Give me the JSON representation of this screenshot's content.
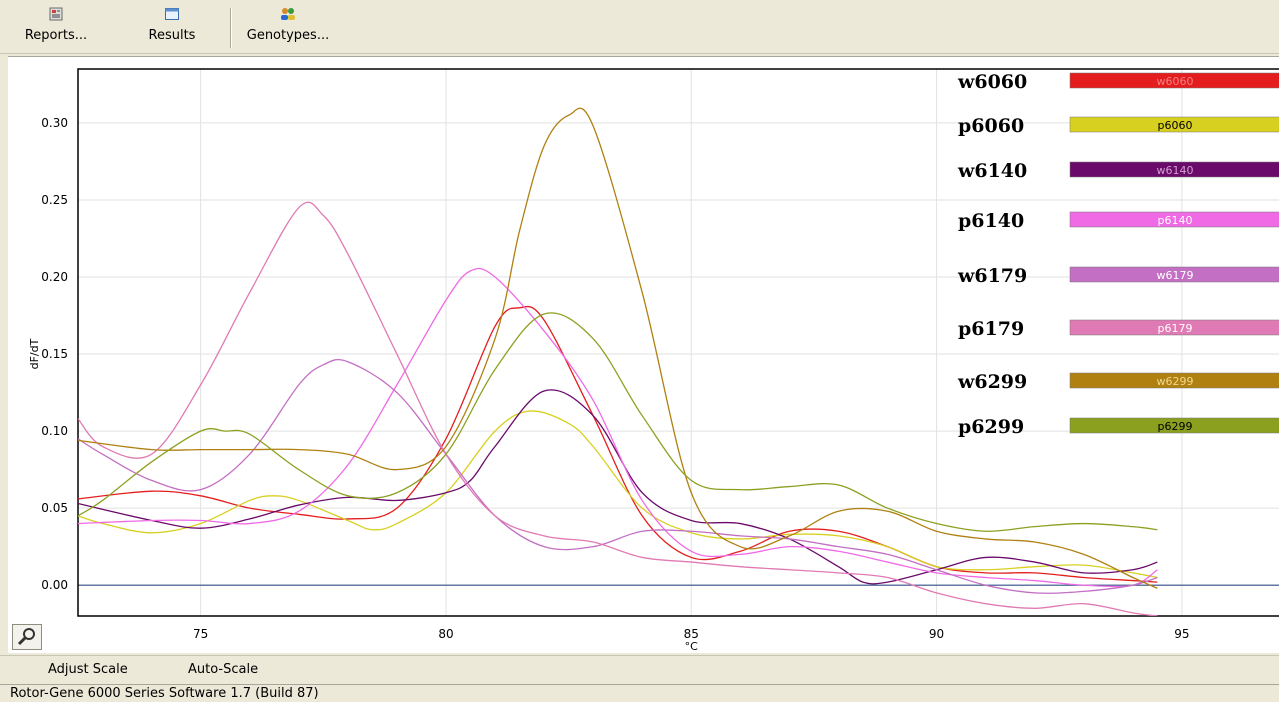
{
  "toolbar": {
    "reports_label": "Reports...",
    "results_label": "Results",
    "genotypes_label": "Genotypes..."
  },
  "bottom": {
    "adjust_scale": "Adjust Scale",
    "auto_scale": "Auto-Scale"
  },
  "status": {
    "text": "Rotor-Gene 6000 Series Software 1.7 (Build 87)"
  },
  "chart_data": {
    "type": "line",
    "title": "",
    "xlabel": "°C",
    "ylabel": "dF/dT",
    "xlim": [
      72.5,
      97
    ],
    "ylim": [
      -0.02,
      0.335
    ],
    "xticks": [
      75,
      80,
      85,
      90,
      95
    ],
    "yticks": [
      0.0,
      0.05,
      0.1,
      0.15,
      0.2,
      0.25,
      0.3
    ],
    "ytick_labels": [
      "0.00",
      "0.05",
      "0.10",
      "0.15",
      "0.20",
      "0.25",
      "0.30"
    ],
    "grid": true,
    "legend_position": "top-right",
    "series": [
      {
        "name": "w6060",
        "color": "#e41e1e",
        "legend_text_color": "#f08080",
        "points": [
          [
            72.5,
            0.056
          ],
          [
            74,
            0.061
          ],
          [
            75,
            0.058
          ],
          [
            76,
            0.05
          ],
          [
            77,
            0.046
          ],
          [
            78,
            0.043
          ],
          [
            79,
            0.05
          ],
          [
            80,
            0.095
          ],
          [
            81,
            0.168
          ],
          [
            81.5,
            0.18
          ],
          [
            82,
            0.172
          ],
          [
            83,
            0.11
          ],
          [
            84,
            0.045
          ],
          [
            85,
            0.018
          ],
          [
            86,
            0.022
          ],
          [
            87,
            0.035
          ],
          [
            88,
            0.035
          ],
          [
            89,
            0.025
          ],
          [
            90,
            0.012
          ],
          [
            91,
            0.008
          ],
          [
            92,
            0.008
          ],
          [
            93,
            0.005
          ],
          [
            94,
            0.003
          ],
          [
            94.5,
            0.002
          ]
        ]
      },
      {
        "name": "p6060",
        "color": "#d8d020",
        "legend_text_color": "#000000",
        "points": [
          [
            72.5,
            0.045
          ],
          [
            73,
            0.04
          ],
          [
            74,
            0.034
          ],
          [
            75,
            0.04
          ],
          [
            76,
            0.055
          ],
          [
            76.5,
            0.058
          ],
          [
            77,
            0.055
          ],
          [
            78,
            0.042
          ],
          [
            78.5,
            0.036
          ],
          [
            79,
            0.04
          ],
          [
            80,
            0.06
          ],
          [
            81,
            0.1
          ],
          [
            81.7,
            0.113
          ],
          [
            82.5,
            0.105
          ],
          [
            83,
            0.09
          ],
          [
            84,
            0.05
          ],
          [
            85,
            0.034
          ],
          [
            86,
            0.03
          ],
          [
            87,
            0.033
          ],
          [
            88,
            0.032
          ],
          [
            89,
            0.025
          ],
          [
            90,
            0.012
          ],
          [
            91,
            0.01
          ],
          [
            92,
            0.012
          ],
          [
            93,
            0.013
          ],
          [
            94,
            0.008
          ],
          [
            94.5,
            0.005
          ]
        ]
      },
      {
        "name": "w6140",
        "color": "#6a0a6a",
        "legend_text_color": "#d0a0d0",
        "points": [
          [
            72.5,
            0.053
          ],
          [
            74,
            0.042
          ],
          [
            75,
            0.037
          ],
          [
            76,
            0.043
          ],
          [
            77,
            0.052
          ],
          [
            78,
            0.057
          ],
          [
            79,
            0.055
          ],
          [
            80,
            0.06
          ],
          [
            80.5,
            0.068
          ],
          [
            81,
            0.09
          ],
          [
            82,
            0.126
          ],
          [
            83,
            0.11
          ],
          [
            84,
            0.06
          ],
          [
            85,
            0.042
          ],
          [
            86,
            0.04
          ],
          [
            87,
            0.03
          ],
          [
            88,
            0.012
          ],
          [
            88.5,
            0.002
          ],
          [
            89,
            0.002
          ],
          [
            90,
            0.01
          ],
          [
            91,
            0.018
          ],
          [
            92,
            0.015
          ],
          [
            93,
            0.008
          ],
          [
            94,
            0.01
          ],
          [
            94.5,
            0.015
          ]
        ]
      },
      {
        "name": "p6140",
        "color": "#f06ae6",
        "legend_text_color": "#ffffff",
        "points": [
          [
            72.5,
            0.04
          ],
          [
            74,
            0.042
          ],
          [
            75,
            0.042
          ],
          [
            76,
            0.04
          ],
          [
            77,
            0.048
          ],
          [
            78,
            0.078
          ],
          [
            79,
            0.13
          ],
          [
            80,
            0.185
          ],
          [
            80.5,
            0.204
          ],
          [
            81,
            0.2
          ],
          [
            82,
            0.165
          ],
          [
            83,
            0.12
          ],
          [
            84,
            0.055
          ],
          [
            85,
            0.022
          ],
          [
            86,
            0.02
          ],
          [
            87,
            0.025
          ],
          [
            88,
            0.022
          ],
          [
            89,
            0.015
          ],
          [
            90,
            0.008
          ],
          [
            91,
            0.005
          ],
          [
            92,
            0.003
          ],
          [
            93,
            0.0
          ],
          [
            94,
            0.0
          ],
          [
            94.5,
            0.01
          ]
        ]
      },
      {
        "name": "w6179",
        "color": "#c36fc3",
        "legend_text_color": "#ffffff",
        "points": [
          [
            72.5,
            0.095
          ],
          [
            73,
            0.085
          ],
          [
            74,
            0.068
          ],
          [
            75,
            0.062
          ],
          [
            76,
            0.085
          ],
          [
            77,
            0.13
          ],
          [
            77.5,
            0.143
          ],
          [
            78,
            0.145
          ],
          [
            79,
            0.125
          ],
          [
            80,
            0.085
          ],
          [
            81,
            0.045
          ],
          [
            82,
            0.025
          ],
          [
            83,
            0.025
          ],
          [
            84,
            0.035
          ],
          [
            85,
            0.035
          ],
          [
            86,
            0.032
          ],
          [
            87,
            0.03
          ],
          [
            88,
            0.025
          ],
          [
            89,
            0.02
          ],
          [
            90,
            0.01
          ],
          [
            91,
            0.0
          ],
          [
            92,
            -0.005
          ],
          [
            93,
            -0.004
          ],
          [
            94,
            0.0
          ],
          [
            94.5,
            0.005
          ]
        ]
      },
      {
        "name": "p6179",
        "color": "#e07ab4",
        "legend_text_color": "#ffffff",
        "points": [
          [
            72.5,
            0.108
          ],
          [
            73,
            0.09
          ],
          [
            74,
            0.085
          ],
          [
            75,
            0.13
          ],
          [
            76,
            0.19
          ],
          [
            77,
            0.245
          ],
          [
            77.5,
            0.24
          ],
          [
            78,
            0.215
          ],
          [
            79,
            0.15
          ],
          [
            80,
            0.085
          ],
          [
            81,
            0.045
          ],
          [
            82,
            0.032
          ],
          [
            83,
            0.028
          ],
          [
            84,
            0.018
          ],
          [
            85,
            0.015
          ],
          [
            86,
            0.012
          ],
          [
            87,
            0.01
          ],
          [
            88,
            0.008
          ],
          [
            89,
            0.005
          ],
          [
            90,
            -0.005
          ],
          [
            91,
            -0.012
          ],
          [
            92,
            -0.015
          ],
          [
            93,
            -0.012
          ],
          [
            94,
            -0.018
          ],
          [
            94.5,
            -0.02
          ]
        ]
      },
      {
        "name": "w6299",
        "color": "#b08010",
        "legend_text_color": "#f0d890",
        "points": [
          [
            72.5,
            0.094
          ],
          [
            74,
            0.088
          ],
          [
            75,
            0.088
          ],
          [
            76,
            0.088
          ],
          [
            77,
            0.088
          ],
          [
            78,
            0.085
          ],
          [
            79,
            0.075
          ],
          [
            80,
            0.09
          ],
          [
            81,
            0.16
          ],
          [
            81.5,
            0.23
          ],
          [
            82,
            0.285
          ],
          [
            82.5,
            0.305
          ],
          [
            83,
            0.298
          ],
          [
            84,
            0.19
          ],
          [
            85,
            0.06
          ],
          [
            86,
            0.025
          ],
          [
            87,
            0.032
          ],
          [
            88,
            0.048
          ],
          [
            89,
            0.048
          ],
          [
            90,
            0.035
          ],
          [
            91,
            0.03
          ],
          [
            92,
            0.028
          ],
          [
            93,
            0.02
          ],
          [
            94,
            0.005
          ],
          [
            94.5,
            -0.002
          ]
        ]
      },
      {
        "name": "p6299",
        "color": "#8ca020",
        "legend_text_color": "#000000",
        "points": [
          [
            72.5,
            0.045
          ],
          [
            73,
            0.055
          ],
          [
            74,
            0.08
          ],
          [
            75,
            0.1
          ],
          [
            75.5,
            0.1
          ],
          [
            76,
            0.098
          ],
          [
            77,
            0.075
          ],
          [
            78,
            0.058
          ],
          [
            79,
            0.06
          ],
          [
            80,
            0.085
          ],
          [
            81,
            0.14
          ],
          [
            82,
            0.176
          ],
          [
            83,
            0.16
          ],
          [
            84,
            0.11
          ],
          [
            85,
            0.068
          ],
          [
            86,
            0.062
          ],
          [
            87,
            0.064
          ],
          [
            88,
            0.065
          ],
          [
            89,
            0.05
          ],
          [
            90,
            0.04
          ],
          [
            91,
            0.035
          ],
          [
            92,
            0.038
          ],
          [
            93,
            0.04
          ],
          [
            94,
            0.038
          ],
          [
            94.5,
            0.036
          ]
        ]
      }
    ]
  }
}
